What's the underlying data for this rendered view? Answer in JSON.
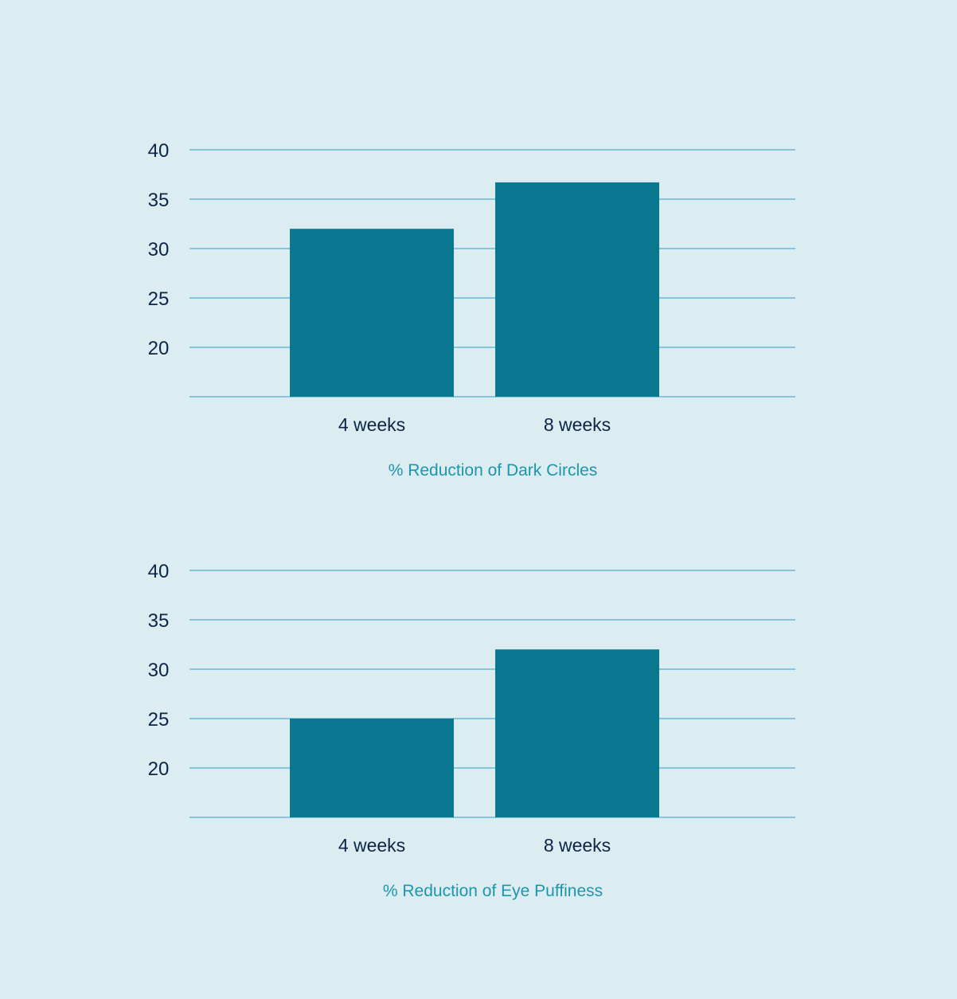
{
  "chart_data": [
    {
      "type": "bar",
      "title": "% Reduction of Dark Circles",
      "categories": [
        "4 weeks",
        "8 weeks"
      ],
      "values": [
        32,
        36.7
      ],
      "yticks": [
        "20",
        "25",
        "30",
        "35",
        "40"
      ],
      "ylim": [
        15,
        40
      ],
      "grid": true,
      "xlabel": "",
      "ylabel": "",
      "colors": {
        "bar": "#0a7891",
        "grid": "#6ab8d4",
        "title": "#1a96b0",
        "text": "#0c2446"
      }
    },
    {
      "type": "bar",
      "title": "% Reduction of Eye Puffiness",
      "categories": [
        "4 weeks",
        "8 weeks"
      ],
      "values": [
        25,
        32
      ],
      "yticks": [
        "20",
        "25",
        "30",
        "35",
        "40"
      ],
      "ylim": [
        15,
        40
      ],
      "grid": true,
      "xlabel": "",
      "ylabel": "",
      "colors": {
        "bar": "#0a7891",
        "grid": "#6ab8d4",
        "title": "#1a96b0",
        "text": "#0c2446"
      }
    }
  ]
}
